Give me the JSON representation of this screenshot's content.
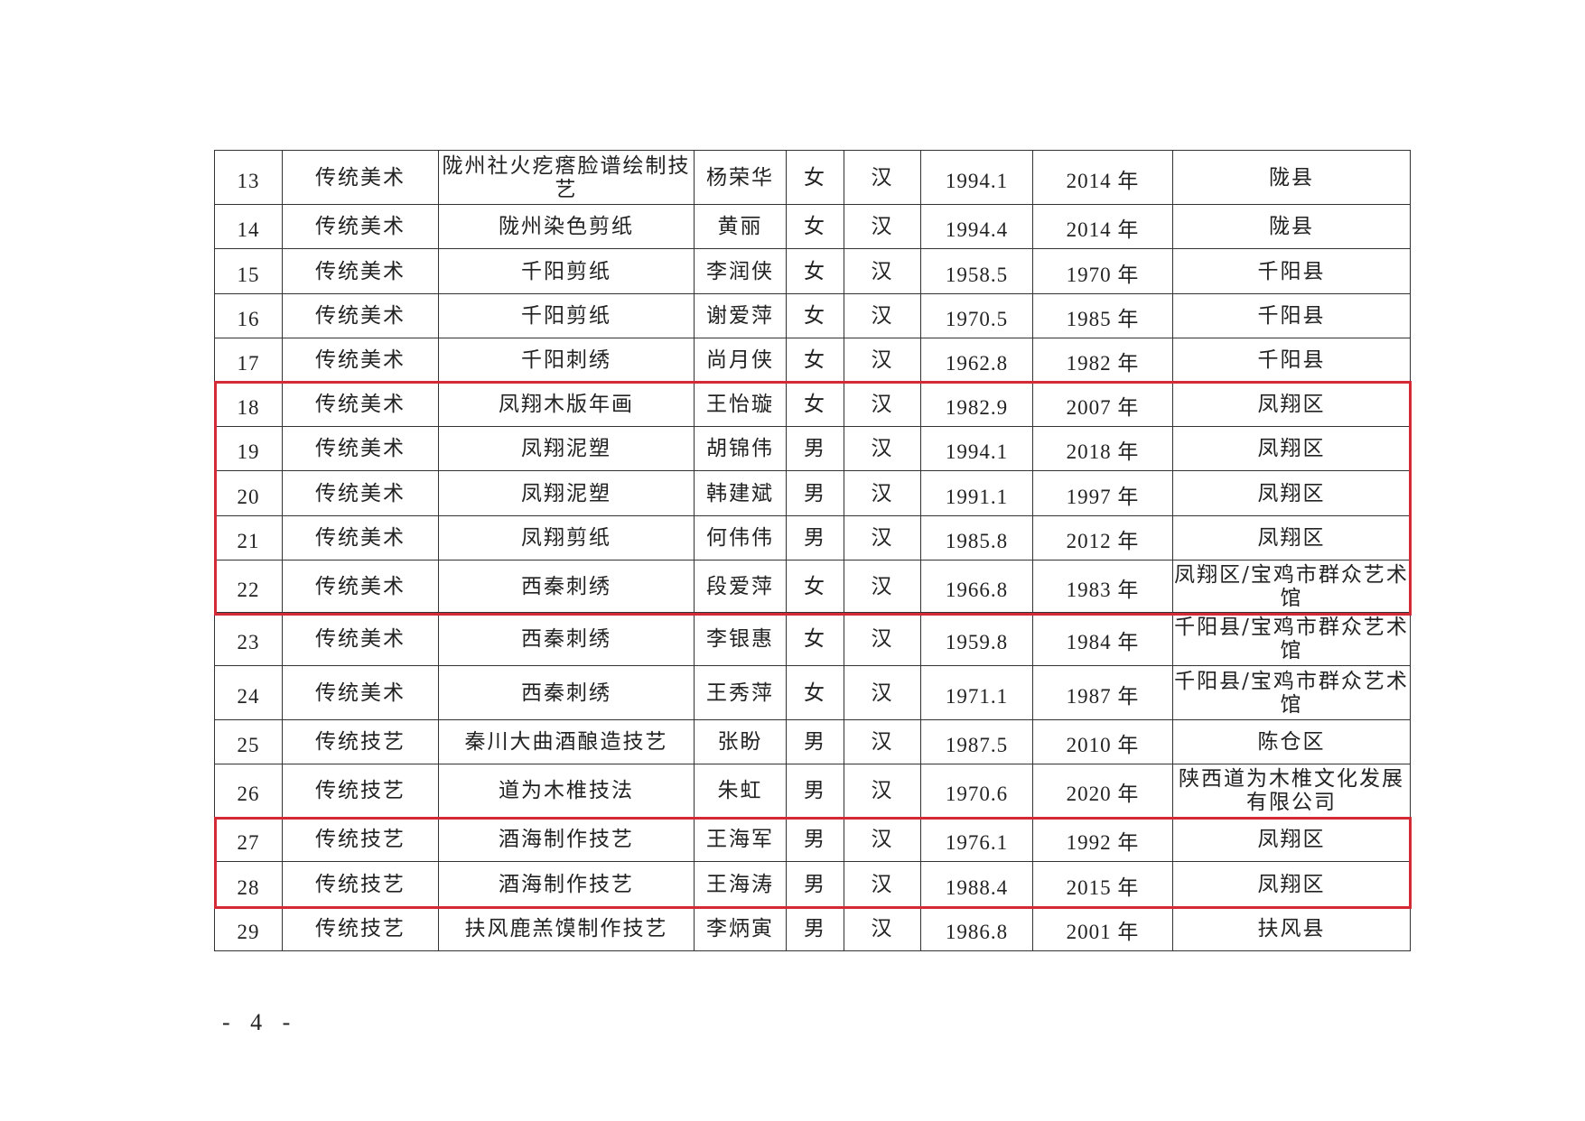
{
  "table": {
    "rows": [
      {
        "no": "13",
        "category": "传统美术",
        "project": "陇州社火疙瘩脸谱绘制技艺",
        "name": "杨荣华",
        "gender": "女",
        "ethnicity": "汉",
        "birth": "1994.1",
        "start": "2014 年",
        "region": "陇县"
      },
      {
        "no": "14",
        "category": "传统美术",
        "project": "陇州染色剪纸",
        "name": "黄丽",
        "gender": "女",
        "ethnicity": "汉",
        "birth": "1994.4",
        "start": "2014 年",
        "region": "陇县"
      },
      {
        "no": "15",
        "category": "传统美术",
        "project": "千阳剪纸",
        "name": "李润侠",
        "gender": "女",
        "ethnicity": "汉",
        "birth": "1958.5",
        "start": "1970 年",
        "region": "千阳县"
      },
      {
        "no": "16",
        "category": "传统美术",
        "project": "千阳剪纸",
        "name": "谢爱萍",
        "gender": "女",
        "ethnicity": "汉",
        "birth": "1970.5",
        "start": "1985 年",
        "region": "千阳县"
      },
      {
        "no": "17",
        "category": "传统美术",
        "project": "千阳刺绣",
        "name": "尚月侠",
        "gender": "女",
        "ethnicity": "汉",
        "birth": "1962.8",
        "start": "1982 年",
        "region": "千阳县"
      },
      {
        "no": "18",
        "category": "传统美术",
        "project": "凤翔木版年画",
        "name": "王怡璇",
        "gender": "女",
        "ethnicity": "汉",
        "birth": "1982.9",
        "start": "2007 年",
        "region": "凤翔区"
      },
      {
        "no": "19",
        "category": "传统美术",
        "project": "凤翔泥塑",
        "name": "胡锦伟",
        "gender": "男",
        "ethnicity": "汉",
        "birth": "1994.1",
        "start": "2018 年",
        "region": "凤翔区"
      },
      {
        "no": "20",
        "category": "传统美术",
        "project": "凤翔泥塑",
        "name": "韩建斌",
        "gender": "男",
        "ethnicity": "汉",
        "birth": "1991.1",
        "start": "1997 年",
        "region": "凤翔区"
      },
      {
        "no": "21",
        "category": "传统美术",
        "project": "凤翔剪纸",
        "name": "何伟伟",
        "gender": "男",
        "ethnicity": "汉",
        "birth": "1985.8",
        "start": "2012 年",
        "region": "凤翔区"
      },
      {
        "no": "22",
        "category": "传统美术",
        "project": "西秦刺绣",
        "name": "段爱萍",
        "gender": "女",
        "ethnicity": "汉",
        "birth": "1966.8",
        "start": "1983 年",
        "region": "凤翔区/宝鸡市群众艺术馆"
      },
      {
        "no": "23",
        "category": "传统美术",
        "project": "西秦刺绣",
        "name": "李银惠",
        "gender": "女",
        "ethnicity": "汉",
        "birth": "1959.8",
        "start": "1984 年",
        "region": "千阳县/宝鸡市群众艺术馆"
      },
      {
        "no": "24",
        "category": "传统美术",
        "project": "西秦刺绣",
        "name": "王秀萍",
        "gender": "女",
        "ethnicity": "汉",
        "birth": "1971.1",
        "start": "1987 年",
        "region": "千阳县/宝鸡市群众艺术馆"
      },
      {
        "no": "25",
        "category": "传统技艺",
        "project": "秦川大曲酒酿造技艺",
        "name": "张盼",
        "gender": "男",
        "ethnicity": "汉",
        "birth": "1987.5",
        "start": "2010 年",
        "region": "陈仓区"
      },
      {
        "no": "26",
        "category": "传统技艺",
        "project": "道为木椎技法",
        "name": "朱虹",
        "gender": "男",
        "ethnicity": "汉",
        "birth": "1970.6",
        "start": "2020 年",
        "region": "陕西道为木椎文化发展有限公司"
      },
      {
        "no": "27",
        "category": "传统技艺",
        "project": "酒海制作技艺",
        "name": "王海军",
        "gender": "男",
        "ethnicity": "汉",
        "birth": "1976.1",
        "start": "1992 年",
        "region": "凤翔区"
      },
      {
        "no": "28",
        "category": "传统技艺",
        "project": "酒海制作技艺",
        "name": "王海涛",
        "gender": "男",
        "ethnicity": "汉",
        "birth": "1988.4",
        "start": "2015 年",
        "region": "凤翔区"
      },
      {
        "no": "29",
        "category": "传统技艺",
        "project": "扶风鹿羔馍制作技艺",
        "name": "李炳寅",
        "gender": "男",
        "ethnicity": "汉",
        "birth": "1986.8",
        "start": "2001 年",
        "region": "扶风县"
      }
    ]
  },
  "highlight_color": "#d42a35",
  "page_number": "- 4 -"
}
